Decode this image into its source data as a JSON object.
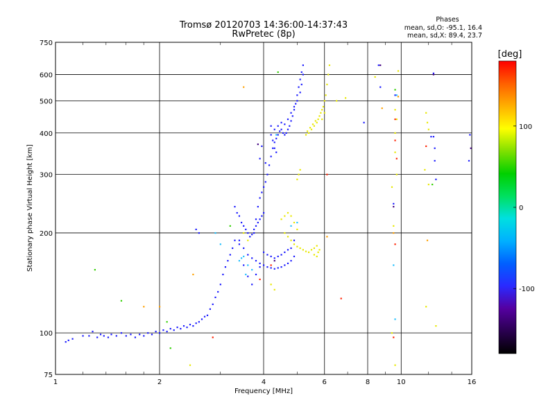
{
  "chart_data": {
    "type": "scatter",
    "title": "Tromsø 20120703 14:36:00-14:37:43",
    "subtitle": "RwPretec (8p)",
    "xlabel": "Frequency [MHz]",
    "ylabel": "Stationary phase Virtual Height [km]",
    "x_scale": "log",
    "y_scale": "log",
    "xlim": [
      1,
      16
    ],
    "ylim": [
      75,
      750
    ],
    "x_ticks": [
      1,
      2,
      4,
      6,
      8,
      10,
      16
    ],
    "x_tick_labels": [
      "1",
      "2",
      "4",
      "6",
      "8",
      "10",
      "16"
    ],
    "y_ticks": [
      75,
      100,
      200,
      300,
      400,
      500,
      600,
      750
    ],
    "y_tick_labels": [
      "75",
      "100",
      "200",
      "300",
      "400",
      "500",
      "600",
      "750"
    ],
    "grid": true,
    "stats": {
      "heading": "Phases",
      "line_o": "mean, sd,O: -95.1, 16.4",
      "line_x": "mean, sd,X:  89.4, 23.7"
    },
    "colorbar": {
      "label": "[deg]",
      "range": [
        -180,
        180
      ],
      "ticks": [
        100,
        0,
        -100
      ],
      "tick_labels": [
        "100",
        "0",
        "-100"
      ],
      "colormap": [
        "#000000",
        "#2a0050",
        "#5500a0",
        "#2a2aff",
        "#0060ff",
        "#00b0ff",
        "#00e0e0",
        "#00e060",
        "#00d000",
        "#80e000",
        "#ffff00",
        "#ffb000",
        "#ff6000",
        "#ff0000"
      ]
    },
    "series": [
      {
        "mode": "O-mode",
        "color": "#1a1aff",
        "phase": -95,
        "points": [
          [
            1.07,
            94
          ],
          [
            1.09,
            95
          ],
          [
            1.12,
            96
          ],
          [
            1.2,
            98
          ],
          [
            1.25,
            98
          ],
          [
            1.28,
            101
          ],
          [
            1.32,
            97
          ],
          [
            1.35,
            99
          ],
          [
            1.38,
            98
          ],
          [
            1.42,
            97
          ],
          [
            1.45,
            99
          ],
          [
            1.5,
            98
          ],
          [
            1.55,
            100
          ],
          [
            1.6,
            98
          ],
          [
            1.65,
            99
          ],
          [
            1.7,
            97
          ],
          [
            1.75,
            99
          ],
          [
            1.8,
            98
          ],
          [
            1.85,
            100
          ],
          [
            1.9,
            99
          ],
          [
            1.95,
            101
          ],
          [
            2.0,
            100
          ],
          [
            2.05,
            102
          ],
          [
            2.1,
            101
          ],
          [
            2.15,
            103
          ],
          [
            2.2,
            102
          ],
          [
            2.25,
            104
          ],
          [
            2.3,
            103
          ],
          [
            2.35,
            105
          ],
          [
            2.4,
            104
          ],
          [
            2.45,
            106
          ],
          [
            2.5,
            105
          ],
          [
            2.55,
            107
          ],
          [
            2.6,
            108
          ],
          [
            2.65,
            110
          ],
          [
            2.7,
            112
          ],
          [
            2.75,
            113
          ],
          [
            2.8,
            118
          ],
          [
            2.85,
            122
          ],
          [
            2.9,
            128
          ],
          [
            2.95,
            133
          ],
          [
            3.0,
            140
          ],
          [
            3.05,
            150
          ],
          [
            3.1,
            158
          ],
          [
            3.15,
            165
          ],
          [
            3.2,
            172
          ],
          [
            3.25,
            180
          ],
          [
            2.55,
            205
          ],
          [
            2.6,
            200
          ],
          [
            3.3,
            190
          ],
          [
            3.4,
            185
          ],
          [
            3.5,
            160
          ],
          [
            3.6,
            148
          ],
          [
            3.7,
            140
          ],
          [
            3.8,
            150
          ],
          [
            3.9,
            158
          ],
          [
            3.3,
            240
          ],
          [
            3.35,
            230
          ],
          [
            3.4,
            225
          ],
          [
            3.45,
            215
          ],
          [
            3.5,
            210
          ],
          [
            3.55,
            205
          ],
          [
            3.6,
            200
          ],
          [
            3.65,
            195
          ],
          [
            3.7,
            198
          ],
          [
            3.75,
            205
          ],
          [
            3.8,
            210
          ],
          [
            3.85,
            215
          ],
          [
            3.9,
            220
          ],
          [
            3.95,
            225
          ],
          [
            4.0,
            230
          ],
          [
            3.4,
            190
          ],
          [
            3.5,
            180
          ],
          [
            3.6,
            172
          ],
          [
            3.7,
            168
          ],
          [
            3.8,
            165
          ],
          [
            3.9,
            162
          ],
          [
            4.0,
            160
          ],
          [
            4.1,
            158
          ],
          [
            4.2,
            157
          ],
          [
            4.3,
            156
          ],
          [
            4.4,
            157
          ],
          [
            4.5,
            158
          ],
          [
            4.6,
            160
          ],
          [
            4.7,
            162
          ],
          [
            4.8,
            165
          ],
          [
            4.9,
            170
          ],
          [
            4.0,
            175
          ],
          [
            4.1,
            172
          ],
          [
            4.2,
            170
          ],
          [
            4.3,
            168
          ],
          [
            4.4,
            170
          ],
          [
            4.5,
            172
          ],
          [
            4.6,
            175
          ],
          [
            4.7,
            178
          ],
          [
            4.8,
            180
          ],
          [
            3.75,
            200
          ],
          [
            3.8,
            220
          ],
          [
            3.85,
            240
          ],
          [
            3.9,
            255
          ],
          [
            3.95,
            265
          ],
          [
            4.0,
            275
          ],
          [
            4.05,
            285
          ],
          [
            4.1,
            300
          ],
          [
            4.15,
            320
          ],
          [
            4.2,
            340
          ],
          [
            4.25,
            360
          ],
          [
            4.3,
            375
          ],
          [
            4.35,
            385
          ],
          [
            4.4,
            395
          ],
          [
            4.45,
            405
          ],
          [
            4.5,
            410
          ],
          [
            4.55,
            400
          ],
          [
            4.6,
            395
          ],
          [
            4.65,
            400
          ],
          [
            4.7,
            410
          ],
          [
            4.75,
            420
          ],
          [
            4.8,
            435
          ],
          [
            4.85,
            450
          ],
          [
            4.9,
            470
          ],
          [
            4.95,
            490
          ],
          [
            5.0,
            520
          ],
          [
            5.05,
            550
          ],
          [
            5.1,
            580
          ],
          [
            5.15,
            610
          ],
          [
            5.2,
            640
          ],
          [
            4.3,
            410
          ],
          [
            4.4,
            420
          ],
          [
            4.5,
            430
          ],
          [
            4.6,
            425
          ],
          [
            4.7,
            440
          ],
          [
            4.8,
            460
          ],
          [
            4.9,
            480
          ],
          [
            5.0,
            500
          ],
          [
            5.1,
            530
          ],
          [
            5.15,
            560
          ],
          [
            5.2,
            600
          ],
          [
            4.2,
            395
          ],
          [
            4.25,
            380
          ],
          [
            4.3,
            360
          ],
          [
            4.35,
            350
          ],
          [
            3.95,
            365
          ],
          [
            3.9,
            335
          ],
          [
            4.05,
            325
          ],
          [
            4.2,
            420
          ],
          [
            8.6,
            640
          ],
          [
            8.7,
            550
          ],
          [
            9.6,
            520
          ],
          [
            9.5,
            245
          ],
          [
            12.4,
            605
          ],
          [
            12.4,
            390
          ],
          [
            12.5,
            360
          ],
          [
            12.5,
            330
          ],
          [
            12.6,
            290
          ],
          [
            12.2,
            390
          ],
          [
            15.8,
            395
          ],
          [
            15.7,
            330
          ],
          [
            7.8,
            430
          ],
          [
            4.9,
            190
          ]
        ]
      },
      {
        "mode": "X-mode",
        "color": "#e8e800",
        "phase": 89,
        "points": [
          [
            5.4,
            400
          ],
          [
            5.5,
            410
          ],
          [
            5.6,
            420
          ],
          [
            5.7,
            430
          ],
          [
            5.75,
            440
          ],
          [
            5.8,
            450
          ],
          [
            5.85,
            460
          ],
          [
            5.9,
            470
          ],
          [
            5.95,
            480
          ],
          [
            6.0,
            500
          ],
          [
            6.05,
            520
          ],
          [
            6.1,
            560
          ],
          [
            6.15,
            600
          ],
          [
            6.2,
            640
          ],
          [
            5.3,
            395
          ],
          [
            5.35,
            405
          ],
          [
            5.45,
            415
          ],
          [
            5.55,
            425
          ],
          [
            5.65,
            435
          ],
          [
            6.0,
            460
          ],
          [
            5.9,
            440
          ],
          [
            5.0,
            290
          ],
          [
            5.05,
            300
          ],
          [
            5.1,
            310
          ],
          [
            4.6,
            200
          ],
          [
            4.7,
            195
          ],
          [
            4.8,
            190
          ],
          [
            4.9,
            185
          ],
          [
            5.0,
            182
          ],
          [
            5.1,
            180
          ],
          [
            5.2,
            178
          ],
          [
            5.3,
            176
          ],
          [
            5.4,
            175
          ],
          [
            5.5,
            178
          ],
          [
            5.6,
            180
          ],
          [
            5.7,
            183
          ],
          [
            5.6,
            172
          ],
          [
            5.7,
            170
          ],
          [
            5.75,
            175
          ],
          [
            5.8,
            178
          ],
          [
            4.5,
            220
          ],
          [
            4.6,
            225
          ],
          [
            4.7,
            230
          ],
          [
            4.8,
            225
          ],
          [
            4.9,
            215
          ],
          [
            5.0,
            205
          ],
          [
            3.5,
            200
          ],
          [
            3.6,
            190
          ],
          [
            4.2,
            140
          ],
          [
            4.3,
            135
          ],
          [
            2.45,
            80
          ],
          [
            6.9,
            510
          ],
          [
            6.5,
            500
          ],
          [
            9.6,
            470
          ],
          [
            9.7,
            440
          ],
          [
            9.6,
            400
          ],
          [
            9.6,
            350
          ],
          [
            9.7,
            300
          ],
          [
            11.8,
            460
          ],
          [
            11.9,
            430
          ],
          [
            12.0,
            410
          ],
          [
            11.7,
            310
          ],
          [
            12.0,
            280
          ],
          [
            9.4,
            275
          ],
          [
            9.5,
            210
          ],
          [
            9.4,
            100
          ],
          [
            9.6,
            80
          ],
          [
            12.6,
            105
          ],
          [
            11.8,
            120
          ],
          [
            8.4,
            590
          ],
          [
            9.8,
            615
          ]
        ]
      },
      {
        "mode": "other",
        "color": "#20c0ff",
        "phase": -40,
        "points": [
          [
            3.4,
            165
          ],
          [
            3.5,
            170
          ],
          [
            3.6,
            160
          ],
          [
            3.7,
            155
          ],
          [
            3.55,
            150
          ],
          [
            3.45,
            168
          ],
          [
            2.9,
            200
          ],
          [
            3.0,
            185
          ],
          [
            4.35,
            395
          ],
          [
            9.6,
            110
          ],
          [
            9.5,
            160
          ],
          [
            4.8,
            210
          ],
          [
            5.0,
            215
          ],
          [
            9.7,
            520
          ]
        ]
      },
      {
        "mode": "other",
        "color": "#ff2000",
        "phase": 175,
        "points": [
          [
            3.9,
            145
          ],
          [
            4.2,
            160
          ],
          [
            6.1,
            300
          ],
          [
            9.6,
            440
          ],
          [
            9.6,
            380
          ],
          [
            9.7,
            335
          ],
          [
            9.5,
            97
          ],
          [
            6.7,
            127
          ],
          [
            2.85,
            97
          ],
          [
            11.8,
            365
          ],
          [
            9.6,
            185
          ]
        ]
      },
      {
        "mode": "other",
        "color": "#ffa000",
        "phase": 130,
        "points": [
          [
            1.8,
            120
          ],
          [
            2.0,
            120
          ],
          [
            2.5,
            150
          ],
          [
            6.1,
            195
          ],
          [
            9.5,
            200
          ],
          [
            8.8,
            475
          ],
          [
            9.8,
            515
          ],
          [
            11.9,
            190
          ],
          [
            3.5,
            550
          ]
        ]
      },
      {
        "mode": "other",
        "color": "#30d000",
        "phase": 20,
        "points": [
          [
            1.3,
            155
          ],
          [
            1.55,
            125
          ],
          [
            2.1,
            108
          ],
          [
            2.15,
            90
          ],
          [
            3.2,
            210
          ],
          [
            4.4,
            610
          ],
          [
            9.6,
            540
          ],
          [
            12.3,
            280
          ]
        ]
      },
      {
        "mode": "other",
        "color": "#400080",
        "phase": -160,
        "points": [
          [
            3.85,
            370
          ],
          [
            9.5,
            240
          ],
          [
            4.3,
            165
          ],
          [
            8.7,
            640
          ],
          [
            12.4,
            600
          ],
          [
            15.9,
            360
          ]
        ]
      }
    ]
  }
}
